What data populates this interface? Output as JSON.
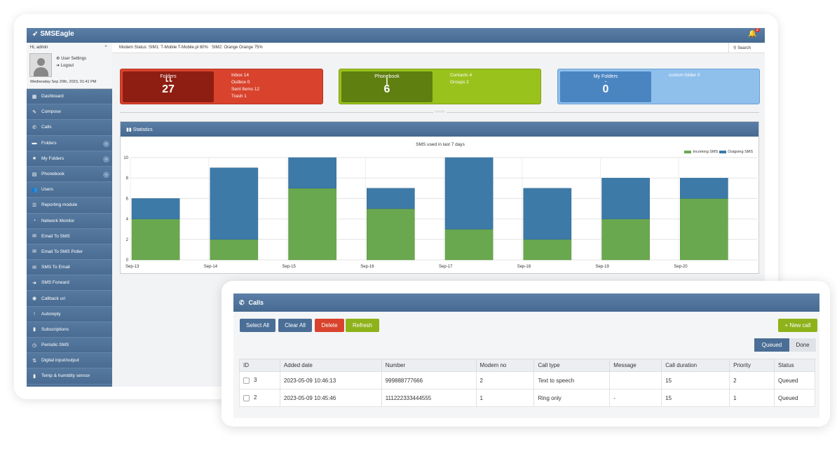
{
  "app": {
    "logo": "SMSEagle",
    "bell_count": "2"
  },
  "status": {
    "modem": "Modem Status:  SIM1: T-Mobile T-Mobile.pl 80%",
    "sim2": "SIM2: Orange Orange 75%",
    "search": "Search"
  },
  "user": {
    "greeting": "Hi, admin",
    "settings": "User Settings",
    "logout": "Logout",
    "date": "Wednesday Sep 20th, 2023, 01:41 PM"
  },
  "nav": [
    {
      "label": "Dashboard",
      "icon": "grid-icon"
    },
    {
      "label": "Compose",
      "icon": "pencil-icon"
    },
    {
      "label": "Calls",
      "icon": "phone-icon"
    },
    {
      "label": "Folders",
      "icon": "folder-icon"
    },
    {
      "label": "My Folders",
      "icon": "star-icon"
    },
    {
      "label": "Phonebook",
      "icon": "book-icon"
    },
    {
      "label": "Users",
      "icon": "users-icon"
    },
    {
      "label": "Reporting module",
      "icon": "list-icon"
    },
    {
      "label": "Network Monitor",
      "icon": "gauge-icon"
    },
    {
      "label": "Email To SMS",
      "icon": "mail-icon"
    },
    {
      "label": "Email To SMS Poller",
      "icon": "mail-icon"
    },
    {
      "label": "SMS To Email",
      "icon": "mail-icon"
    },
    {
      "label": "SMS Forward",
      "icon": "arrow-icon"
    },
    {
      "label": "Callback url",
      "icon": "link-icon"
    },
    {
      "label": "Autoreply",
      "icon": "reply-icon"
    },
    {
      "label": "Subscriptions",
      "icon": "bookmark-icon"
    },
    {
      "label": "Periodic SMS",
      "icon": "clock-icon"
    },
    {
      "label": "Digital input/output",
      "icon": "io-icon"
    },
    {
      "label": "Temp & humidity sensor",
      "icon": "bars-icon"
    }
  ],
  "tiles": {
    "folders": {
      "label": "Folders",
      "count": "27",
      "items": [
        "Inbox 14",
        "Outbox 0",
        "Sent Items 12",
        "Trash 1"
      ]
    },
    "phonebook": {
      "label": "Phonebook",
      "count": "6",
      "items": [
        "Contacts 4",
        "Groups 2"
      ]
    },
    "myfolders": {
      "label": "My Folders",
      "count": "0",
      "items": [
        "custom folder 0"
      ]
    }
  },
  "stats_header": "Statistics",
  "chart_data": {
    "type": "bar",
    "title": "SMS used in last 7 days",
    "categories": [
      "Sep-13",
      "Sep-14",
      "Sep-15",
      "Sep-16",
      "Sep-17",
      "Sep-18",
      "Sep-19",
      "Sep-20"
    ],
    "series": [
      {
        "name": "Incoming SMS",
        "values": [
          4,
          2,
          7,
          5,
          3,
          2,
          4,
          6
        ],
        "color": "#6aa84f"
      },
      {
        "name": "Outgoing SMS",
        "values": [
          2,
          7,
          3,
          2,
          7,
          5,
          4,
          2
        ],
        "color": "#3d7aa8"
      }
    ],
    "ylim": [
      0,
      10
    ],
    "yticks": [
      0,
      2,
      4,
      6,
      8,
      10
    ],
    "stacked": true,
    "legend": "top-right",
    "grid": true
  },
  "calls": {
    "header": "Calls",
    "buttons": {
      "select_all": "Select All",
      "clear_all": "Clear All",
      "delete": "Delete",
      "refresh": "Refresh",
      "new_call": "+ New call"
    },
    "segments": {
      "queued": "Queued",
      "done": "Done"
    },
    "columns": [
      "ID",
      "Added date",
      "Number",
      "Modem no",
      "Call type",
      "Message",
      "Call duration",
      "Priority",
      "Status"
    ],
    "rows": [
      [
        "3",
        "2023-05-09 10:46:13",
        "999888777666",
        "2",
        "Text to speech",
        "",
        "15",
        "2",
        "Queued"
      ],
      [
        "2",
        "2023-05-09 10:45:46",
        "111222333444555",
        "1",
        "Ring only",
        "-",
        "15",
        "1",
        "Queued"
      ]
    ]
  },
  "colors": {
    "header_blue": "#4e729a",
    "folders_red": "#d9432d",
    "phonebook_green": "#8eb21a",
    "myfolders_blue": "#7fb3e4",
    "delete_red": "#d9432d",
    "refresh_green": "#8eb21a",
    "btn_blue": "#4a6e96"
  }
}
